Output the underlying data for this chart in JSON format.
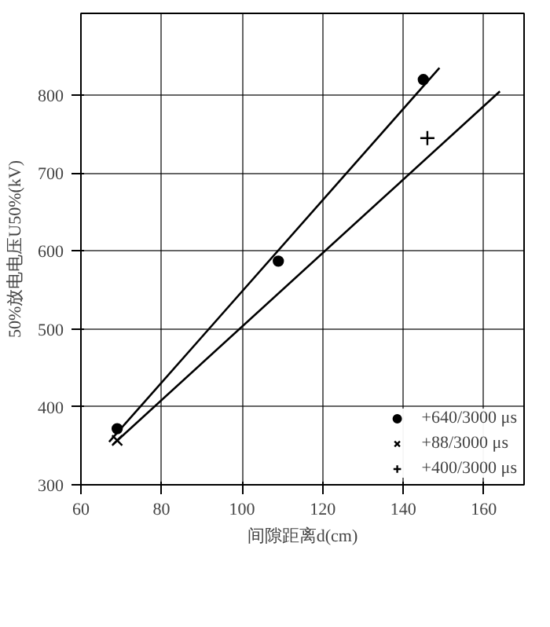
{
  "chart_data": {
    "type": "scatter",
    "xlabel": "间隙距离d(cm)",
    "ylabel": "50%放电电压U50%(kV)",
    "xlim": [
      60,
      170
    ],
    "ylim": [
      300,
      905
    ],
    "xticks": [
      60,
      80,
      100,
      120,
      140,
      160
    ],
    "yticks": [
      300,
      400,
      500,
      600,
      700,
      800
    ],
    "grid": true,
    "legend": "bottom",
    "series": [
      {
        "name": "+640/3000 μs",
        "marker": "circle",
        "color": "#000000",
        "x": [
          69,
          109,
          145
        ],
        "values": [
          372,
          587,
          820
        ]
      },
      {
        "name": "+88/3000 μs",
        "marker": "x",
        "color": "#000000",
        "x": [
          69
        ],
        "values": [
          357
        ]
      },
      {
        "name": "+400/3000 μs",
        "marker": "cross",
        "color": "#000000",
        "x": [
          146
        ],
        "values": [
          745
        ]
      },
      {
        "type": "line",
        "color": "#000000",
        "x": [
          67,
          149
        ],
        "values": [
          355,
          835
        ]
      },
      {
        "type": "line",
        "color": "#000000",
        "x": [
          68,
          164
        ],
        "values": [
          352,
          805
        ]
      }
    ]
  }
}
